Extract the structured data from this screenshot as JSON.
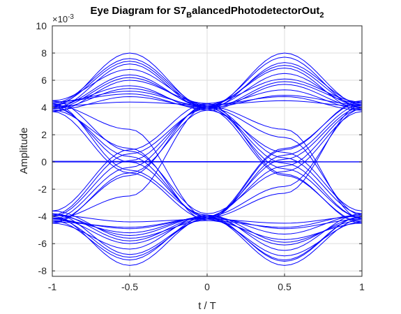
{
  "chart_data": {
    "type": "line",
    "title": {
      "main": "Eye Diagram for S7",
      "sub1": "B",
      "mid": "alancedPhotodetectorOut",
      "sub2": "2"
    },
    "xlabel": "t / T",
    "ylabel": "Amplitude",
    "y_multiplier": "×10",
    "y_exponent": "-3",
    "xlim": [
      -1,
      1
    ],
    "ylim": [
      -8.4,
      10
    ],
    "x_ticks": [
      -1,
      -0.5,
      0,
      0.5,
      1
    ],
    "x_tick_labels": [
      "-1",
      "-0.5",
      "0",
      "0.5",
      "1"
    ],
    "y_ticks": [
      -8,
      -6,
      -4,
      -2,
      0,
      2,
      4,
      6,
      8,
      10
    ],
    "y_tick_labels": [
      "-8",
      "-6",
      "-4",
      "-2",
      "0",
      "2",
      "4",
      "6",
      "8",
      "10"
    ],
    "grid": true,
    "series_color": "#0000ff",
    "series": [
      {
        "x": [
          -1,
          0,
          1
        ],
        "values": [
          0,
          0,
          0
        ]
      },
      {
        "x": [
          -1,
          0,
          1
        ],
        "values": [
          0.05,
          0.03,
          0.02
        ]
      },
      {
        "x": [
          -1,
          -0.5,
          0,
          0.5,
          1
        ],
        "values": [
          4.1,
          8.0,
          4.0,
          8.0,
          4.2
        ]
      },
      {
        "x": [
          -1,
          -0.5,
          0,
          0.5,
          1
        ],
        "values": [
          4.3,
          7.6,
          4.1,
          7.7,
          4.0
        ]
      },
      {
        "x": [
          -1,
          -0.5,
          0,
          0.5,
          1
        ],
        "values": [
          3.9,
          7.2,
          3.9,
          7.3,
          4.3
        ]
      },
      {
        "x": [
          -1,
          -0.5,
          0,
          0.5,
          1
        ],
        "values": [
          4.5,
          6.8,
          4.2,
          6.9,
          3.8
        ]
      },
      {
        "x": [
          -1,
          -0.5,
          0,
          0.5,
          1
        ],
        "values": [
          4.0,
          6.4,
          4.0,
          6.5,
          4.1
        ]
      },
      {
        "x": [
          -1,
          -0.5,
          0,
          0.5,
          1
        ],
        "values": [
          3.7,
          6.0,
          4.3,
          6.1,
          4.4
        ]
      },
      {
        "x": [
          -1,
          -0.5,
          0,
          0.5,
          1
        ],
        "values": [
          4.2,
          5.6,
          3.8,
          5.7,
          4.0
        ]
      },
      {
        "x": [
          -1,
          -0.5,
          0,
          0.5,
          1
        ],
        "values": [
          4.4,
          5.2,
          4.1,
          5.3,
          3.9
        ]
      },
      {
        "x": [
          -1,
          -0.5,
          0,
          0.5,
          1
        ],
        "values": [
          3.8,
          4.8,
          4.0,
          4.9,
          4.2
        ]
      },
      {
        "x": [
          -1,
          -0.5,
          0,
          0.5,
          1
        ],
        "values": [
          4.1,
          4.4,
          4.2,
          4.5,
          4.1
        ]
      },
      {
        "x": [
          -1,
          -0.5,
          0,
          0.5,
          1
        ],
        "values": [
          -4.0,
          -7.6,
          -4.1,
          -7.6,
          -4.2
        ]
      },
      {
        "x": [
          -1,
          -0.5,
          0,
          0.5,
          1
        ],
        "values": [
          -4.3,
          -7.2,
          -4.0,
          -7.3,
          -4.0
        ]
      },
      {
        "x": [
          -1,
          -0.5,
          0,
          0.5,
          1
        ],
        "values": [
          -3.8,
          -6.8,
          -4.2,
          -6.9,
          -4.4
        ]
      },
      {
        "x": [
          -1,
          -0.5,
          0,
          0.5,
          1
        ],
        "values": [
          -4.5,
          -6.4,
          -3.9,
          -6.5,
          -3.8
        ]
      },
      {
        "x": [
          -1,
          -0.5,
          0,
          0.5,
          1
        ],
        "values": [
          -4.1,
          -6.0,
          -4.1,
          -6.1,
          -4.1
        ]
      },
      {
        "x": [
          -1,
          -0.5,
          0,
          0.5,
          1
        ],
        "values": [
          -3.6,
          -5.6,
          -4.3,
          -5.7,
          -4.5
        ]
      },
      {
        "x": [
          -1,
          -0.5,
          0,
          0.5,
          1
        ],
        "values": [
          -4.2,
          -5.2,
          -4.0,
          -5.3,
          -3.9
        ]
      },
      {
        "x": [
          -1,
          -0.5,
          0,
          0.5,
          1
        ],
        "values": [
          -4.4,
          -4.8,
          -4.1,
          -4.9,
          -4.2
        ]
      },
      {
        "x": [
          -1,
          -0.5,
          0,
          0.5,
          1
        ],
        "values": [
          -3.9,
          -4.4,
          -4.2,
          -4.5,
          -4.0
        ]
      },
      {
        "x": [
          -1,
          -0.5,
          0,
          0.5,
          1
        ],
        "values": [
          4.2,
          7.4,
          4.0,
          -0.5,
          -4.1
        ]
      },
      {
        "x": [
          -1,
          -0.5,
          0,
          0.5,
          1
        ],
        "values": [
          3.9,
          6.2,
          4.1,
          0.3,
          -3.8
        ]
      },
      {
        "x": [
          -1,
          -0.5,
          0,
          0.5,
          1
        ],
        "values": [
          4.4,
          5.0,
          3.9,
          -1.0,
          -4.4
        ]
      },
      {
        "x": [
          -1,
          -0.5,
          0,
          0.5,
          1
        ],
        "values": [
          -4.1,
          -7.0,
          -4.2,
          0.5,
          4.2
        ]
      },
      {
        "x": [
          -1,
          -0.5,
          0,
          0.5,
          1
        ],
        "values": [
          -3.8,
          -5.8,
          -4.0,
          -0.3,
          3.9
        ]
      },
      {
        "x": [
          -1,
          -0.5,
          0,
          0.5,
          1
        ],
        "values": [
          -4.3,
          -4.9,
          -4.1,
          1.0,
          4.4
        ]
      },
      {
        "x": [
          -1,
          -0.5,
          0,
          0.5,
          1
        ],
        "values": [
          4.0,
          0.4,
          -4.1,
          -7.2,
          -4.0
        ]
      },
      {
        "x": [
          -1,
          -0.5,
          0,
          0.5,
          1
        ],
        "values": [
          4.3,
          -0.6,
          -3.9,
          -5.9,
          -4.3
        ]
      },
      {
        "x": [
          -1,
          -0.5,
          0,
          0.5,
          1
        ],
        "values": [
          3.8,
          1.0,
          -4.3,
          -4.8,
          -3.9
        ]
      },
      {
        "x": [
          -1,
          -0.5,
          0,
          0.5,
          1
        ],
        "values": [
          -4.2,
          -0.4,
          4.1,
          7.1,
          4.1
        ]
      },
      {
        "x": [
          -1,
          -0.5,
          0,
          0.5,
          1
        ],
        "values": [
          -3.9,
          0.6,
          3.9,
          5.9,
          4.3
        ]
      },
      {
        "x": [
          -1,
          -0.5,
          0,
          0.5,
          1
        ],
        "values": [
          -4.4,
          -1.0,
          4.2,
          4.8,
          3.8
        ]
      },
      {
        "x": [
          -1,
          -0.5,
          0,
          0.5,
          1
        ],
        "values": [
          4.1,
          0.0,
          -4.0,
          0.2,
          4.0
        ]
      },
      {
        "x": [
          -1,
          -0.5,
          0,
          0.5,
          1
        ],
        "values": [
          3.7,
          -0.8,
          -4.2,
          0.9,
          4.5
        ]
      },
      {
        "x": [
          -1,
          -0.5,
          0,
          0.5,
          1
        ],
        "values": [
          4.5,
          0.8,
          -3.8,
          -0.7,
          3.7
        ]
      },
      {
        "x": [
          -1,
          -0.5,
          0,
          0.5,
          1
        ],
        "values": [
          -4.0,
          0.1,
          4.0,
          -0.1,
          -4.1
        ]
      },
      {
        "x": [
          -1,
          -0.5,
          0,
          0.5,
          1
        ],
        "values": [
          -3.6,
          0.9,
          4.3,
          -0.9,
          -4.5
        ]
      },
      {
        "x": [
          -1,
          -0.5,
          0,
          0.5,
          1
        ],
        "values": [
          -4.5,
          -0.8,
          3.8,
          0.7,
          -3.6
        ]
      },
      {
        "x": [
          -1,
          -0.5,
          0,
          0.5,
          1
        ],
        "values": [
          4.2,
          2.4,
          -4.1,
          -2.3,
          4.2
        ]
      },
      {
        "x": [
          -1,
          -0.5,
          0,
          0.5,
          1
        ],
        "values": [
          -4.2,
          -2.5,
          4.1,
          2.4,
          -4.2
        ]
      },
      {
        "x": [
          -1,
          -0.5,
          0,
          0.5,
          1
        ],
        "values": [
          3.9,
          5.4,
          4.0,
          1.8,
          -3.9
        ]
      },
      {
        "x": [
          -1,
          -0.5,
          0,
          0.5,
          1
        ],
        "values": [
          -3.9,
          -5.4,
          -4.0,
          -1.8,
          3.9
        ]
      }
    ]
  }
}
